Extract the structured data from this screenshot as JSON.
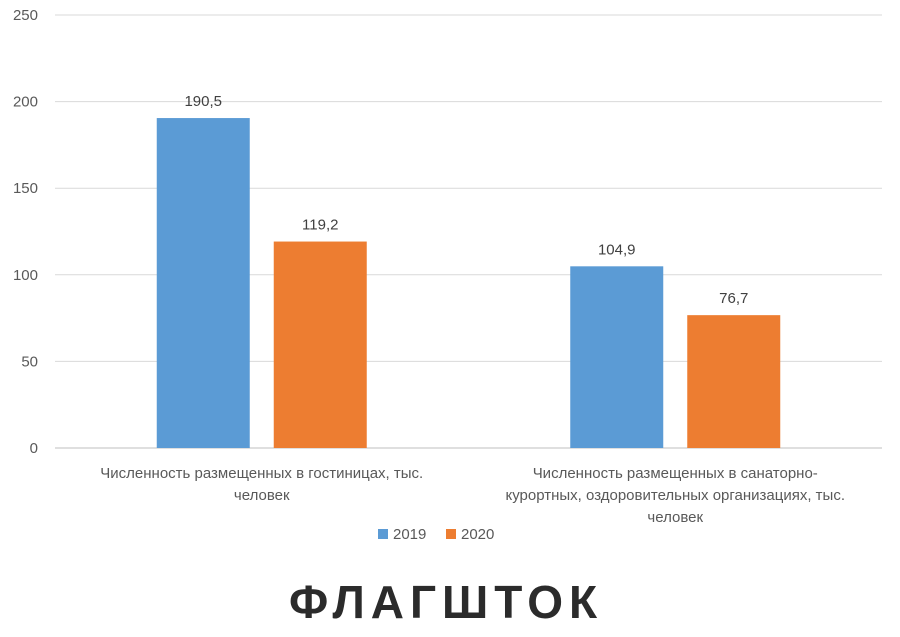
{
  "chart_data": {
    "type": "bar",
    "categories": [
      [
        "Численность размещенных в гостиницах, тыс.",
        "человек"
      ],
      [
        "Численность размещенных в санаторно-",
        "курортных, оздоровительных организациях, тыс.",
        "человек"
      ]
    ],
    "series": [
      {
        "name": "2019",
        "values": [
          190.5,
          104.9
        ],
        "labels": [
          "190,5",
          "104,9"
        ],
        "color": "#5b9bd5"
      },
      {
        "name": "2020",
        "values": [
          119.2,
          76.7
        ],
        "labels": [
          "119,2",
          "76,7"
        ],
        "color": "#ed7d31"
      }
    ],
    "yticks": [
      0,
      50,
      100,
      150,
      200,
      250
    ],
    "ylim": [
      0,
      250
    ],
    "grid": true,
    "legend": "bottom"
  },
  "watermark": "ФЛАГШТОК"
}
